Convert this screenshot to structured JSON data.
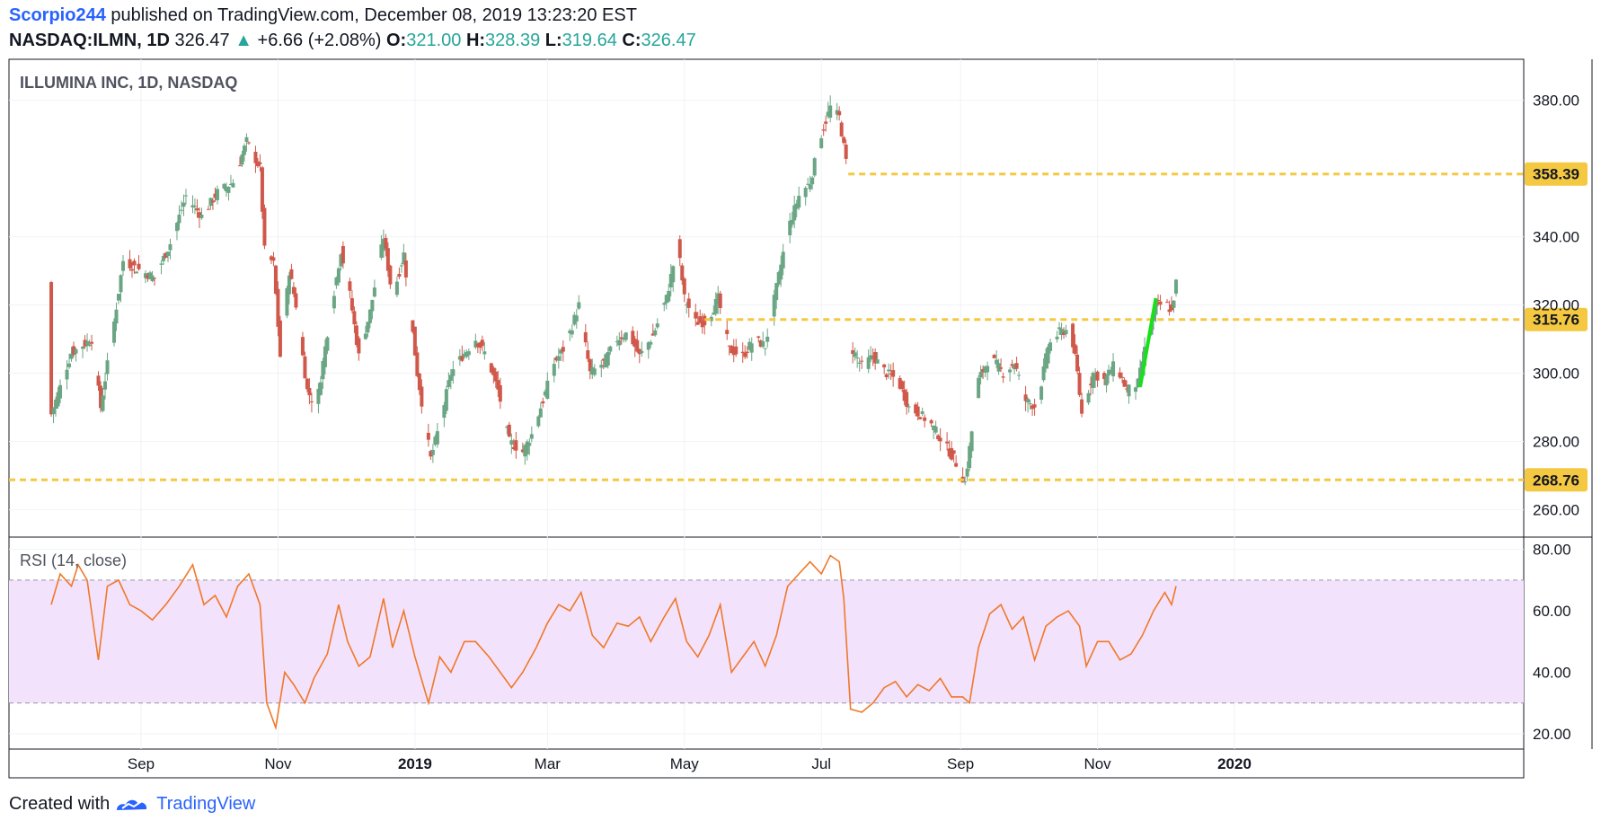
{
  "header": {
    "author": "Scorpio244",
    "published": " published on TradingView.com, December 08, 2019 13:23:20 EST",
    "symbol": "NASDAQ:ILMN, 1D",
    "last": "326.47",
    "change": "+6.66 (+2.08%)",
    "o_label": "O:",
    "o": "321.00",
    "h_label": "H:",
    "h": "328.39",
    "l_label": "L:",
    "l": "319.64",
    "c_label": "C:",
    "c": "326.47"
  },
  "footer": {
    "created_with": "Created with",
    "brand": "TradingView"
  },
  "colors": {
    "up": "#6aa584",
    "down": "#d0584a",
    "hline": "#f5c842",
    "trend": "#18e01a",
    "rsi": "#f0782a",
    "rsi_band": "#f3e2fb"
  },
  "chart_data": [
    {
      "type": "candlestick",
      "title": "ILLUMINA INC, 1D, NASDAQ",
      "x_ticks": [
        "Sep",
        "Nov",
        "2019",
        "Mar",
        "May",
        "Jul",
        "Sep",
        "Nov",
        "2020"
      ],
      "y_ticks": [
        "260.00",
        "280.00",
        "300.00",
        "320.00",
        "340.00",
        "380.00"
      ],
      "ylim": [
        252,
        392
      ],
      "grid": true,
      "horizontal_levels": [
        {
          "label": "358.39",
          "value": 358.39
        },
        {
          "label": "315.76",
          "value": 315.76
        },
        {
          "label": "268.76",
          "value": 268.76
        }
      ],
      "trend_line": {
        "from": {
          "x": "2019-11-20",
          "y": 296
        },
        "to": {
          "x": "2019-11-27",
          "y": 322
        }
      },
      "close_path": [
        {
          "x": "2018-07-23",
          "y": 288
        },
        {
          "x": "2018-08-01",
          "y": 306
        },
        {
          "x": "2018-08-10",
          "y": 310
        },
        {
          "x": "2018-08-14",
          "y": 290
        },
        {
          "x": "2018-08-20",
          "y": 315
        },
        {
          "x": "2018-08-24",
          "y": 333
        },
        {
          "x": "2018-09-01",
          "y": 330
        },
        {
          "x": "2018-09-07",
          "y": 328
        },
        {
          "x": "2018-09-14",
          "y": 338
        },
        {
          "x": "2018-09-21",
          "y": 352
        },
        {
          "x": "2018-09-28",
          "y": 346
        },
        {
          "x": "2018-10-05",
          "y": 353
        },
        {
          "x": "2018-10-12",
          "y": 356
        },
        {
          "x": "2018-10-18",
          "y": 368
        },
        {
          "x": "2018-10-24",
          "y": 360
        },
        {
          "x": "2018-10-26",
          "y": 336
        },
        {
          "x": "2018-10-30",
          "y": 332
        },
        {
          "x": "2018-11-02",
          "y": 305
        },
        {
          "x": "2018-11-06",
          "y": 330
        },
        {
          "x": "2018-11-09",
          "y": 320
        },
        {
          "x": "2018-11-14",
          "y": 295
        },
        {
          "x": "2018-11-18",
          "y": 290
        },
        {
          "x": "2018-11-23",
          "y": 312
        },
        {
          "x": "2018-11-29",
          "y": 336
        },
        {
          "x": "2018-12-03",
          "y": 323
        },
        {
          "x": "2018-12-07",
          "y": 305
        },
        {
          "x": "2018-12-12",
          "y": 318
        },
        {
          "x": "2018-12-18",
          "y": 340
        },
        {
          "x": "2018-12-22",
          "y": 322
        },
        {
          "x": "2018-12-27",
          "y": 335
        },
        {
          "x": "2019-01-02",
          "y": 300
        },
        {
          "x": "2019-01-08",
          "y": 275
        },
        {
          "x": "2019-01-12",
          "y": 285
        },
        {
          "x": "2019-01-17",
          "y": 300
        },
        {
          "x": "2019-01-22",
          "y": 305
        },
        {
          "x": "2019-01-28",
          "y": 310
        },
        {
          "x": "2019-02-02",
          "y": 305
        },
        {
          "x": "2019-02-07",
          "y": 295
        },
        {
          "x": "2019-02-12",
          "y": 280
        },
        {
          "x": "2019-02-18",
          "y": 277
        },
        {
          "x": "2019-02-22",
          "y": 282
        },
        {
          "x": "2019-02-27",
          "y": 292
        },
        {
          "x": "2019-03-04",
          "y": 303
        },
        {
          "x": "2019-03-09",
          "y": 308
        },
        {
          "x": "2019-03-15",
          "y": 320
        },
        {
          "x": "2019-03-20",
          "y": 300
        },
        {
          "x": "2019-03-26",
          "y": 303
        },
        {
          "x": "2019-04-01",
          "y": 310
        },
        {
          "x": "2019-04-06",
          "y": 312
        },
        {
          "x": "2019-04-11",
          "y": 305
        },
        {
          "x": "2019-04-17",
          "y": 311
        },
        {
          "x": "2019-04-23",
          "y": 322
        },
        {
          "x": "2019-04-28",
          "y": 338
        },
        {
          "x": "2019-05-01",
          "y": 322
        },
        {
          "x": "2019-05-06",
          "y": 315
        },
        {
          "x": "2019-05-11",
          "y": 315
        },
        {
          "x": "2019-05-16",
          "y": 322
        },
        {
          "x": "2019-05-21",
          "y": 307
        },
        {
          "x": "2019-05-27",
          "y": 305
        },
        {
          "x": "2019-06-01",
          "y": 310
        },
        {
          "x": "2019-06-06",
          "y": 308
        },
        {
          "x": "2019-06-11",
          "y": 325
        },
        {
          "x": "2019-06-16",
          "y": 342
        },
        {
          "x": "2019-06-21",
          "y": 352
        },
        {
          "x": "2019-06-26",
          "y": 356
        },
        {
          "x": "2019-07-01",
          "y": 370
        },
        {
          "x": "2019-07-05",
          "y": 378
        },
        {
          "x": "2019-07-09",
          "y": 375
        },
        {
          "x": "2019-07-12",
          "y": 362
        },
        {
          "x": "2019-07-14",
          "y": 308
        },
        {
          "x": "2019-07-19",
          "y": 302
        },
        {
          "x": "2019-07-24",
          "y": 305
        },
        {
          "x": "2019-07-30",
          "y": 300
        },
        {
          "x": "2019-08-04",
          "y": 298
        },
        {
          "x": "2019-08-09",
          "y": 290
        },
        {
          "x": "2019-08-14",
          "y": 288
        },
        {
          "x": "2019-08-19",
          "y": 285
        },
        {
          "x": "2019-08-24",
          "y": 280
        },
        {
          "x": "2019-08-29",
          "y": 275
        },
        {
          "x": "2019-09-03",
          "y": 268
        },
        {
          "x": "2019-09-05",
          "y": 278
        },
        {
          "x": "2019-09-09",
          "y": 298
        },
        {
          "x": "2019-09-14",
          "y": 305
        },
        {
          "x": "2019-09-20",
          "y": 300
        },
        {
          "x": "2019-09-25",
          "y": 303
        },
        {
          "x": "2019-09-30",
          "y": 292
        },
        {
          "x": "2019-10-05",
          "y": 290
        },
        {
          "x": "2019-10-10",
          "y": 308
        },
        {
          "x": "2019-10-15",
          "y": 312
        },
        {
          "x": "2019-10-20",
          "y": 313
        },
        {
          "x": "2019-10-23",
          "y": 300
        },
        {
          "x": "2019-10-25",
          "y": 288
        },
        {
          "x": "2019-10-30",
          "y": 300
        },
        {
          "x": "2019-11-04",
          "y": 298
        },
        {
          "x": "2019-11-09",
          "y": 303
        },
        {
          "x": "2019-11-14",
          "y": 295
        },
        {
          "x": "2019-11-19",
          "y": 297
        },
        {
          "x": "2019-11-23",
          "y": 310
        },
        {
          "x": "2019-11-27",
          "y": 320
        },
        {
          "x": "2019-12-02",
          "y": 320
        },
        {
          "x": "2019-12-04",
          "y": 318
        },
        {
          "x": "2019-12-06",
          "y": 326.47
        }
      ]
    },
    {
      "type": "line",
      "title": "RSI (14, close)",
      "y_ticks": [
        "20.00",
        "40.00",
        "60.00",
        "80.00"
      ],
      "ylim": [
        15,
        84
      ],
      "bands": [
        30,
        70
      ],
      "grid": true,
      "series": [
        {
          "values": [
            {
              "x": "2018-07-23",
              "y": 62
            },
            {
              "x": "2018-07-27",
              "y": 72
            },
            {
              "x": "2018-08-01",
              "y": 68
            },
            {
              "x": "2018-08-04",
              "y": 75
            },
            {
              "x": "2018-08-08",
              "y": 70
            },
            {
              "x": "2018-08-13",
              "y": 44
            },
            {
              "x": "2018-08-17",
              "y": 68
            },
            {
              "x": "2018-08-22",
              "y": 70
            },
            {
              "x": "2018-08-27",
              "y": 62
            },
            {
              "x": "2018-09-01",
              "y": 60
            },
            {
              "x": "2018-09-06",
              "y": 57
            },
            {
              "x": "2018-09-12",
              "y": 62
            },
            {
              "x": "2018-09-18",
              "y": 68
            },
            {
              "x": "2018-09-24",
              "y": 75
            },
            {
              "x": "2018-09-29",
              "y": 62
            },
            {
              "x": "2018-10-04",
              "y": 65
            },
            {
              "x": "2018-10-09",
              "y": 58
            },
            {
              "x": "2018-10-14",
              "y": 68
            },
            {
              "x": "2018-10-19",
              "y": 72
            },
            {
              "x": "2018-10-24",
              "y": 62
            },
            {
              "x": "2018-10-27",
              "y": 30
            },
            {
              "x": "2018-10-31",
              "y": 22
            },
            {
              "x": "2018-11-04",
              "y": 40
            },
            {
              "x": "2018-11-08",
              "y": 36
            },
            {
              "x": "2018-11-13",
              "y": 30
            },
            {
              "x": "2018-11-17",
              "y": 38
            },
            {
              "x": "2018-11-23",
              "y": 46
            },
            {
              "x": "2018-11-28",
              "y": 62
            },
            {
              "x": "2018-12-02",
              "y": 50
            },
            {
              "x": "2018-12-07",
              "y": 42
            },
            {
              "x": "2018-12-12",
              "y": 45
            },
            {
              "x": "2018-12-18",
              "y": 64
            },
            {
              "x": "2018-12-22",
              "y": 48
            },
            {
              "x": "2018-12-27",
              "y": 60
            },
            {
              "x": "2019-01-01",
              "y": 45
            },
            {
              "x": "2019-01-07",
              "y": 30
            },
            {
              "x": "2019-01-12",
              "y": 45
            },
            {
              "x": "2019-01-17",
              "y": 40
            },
            {
              "x": "2019-01-23",
              "y": 50
            },
            {
              "x": "2019-01-28",
              "y": 50
            },
            {
              "x": "2019-02-03",
              "y": 45
            },
            {
              "x": "2019-02-08",
              "y": 40
            },
            {
              "x": "2019-02-13",
              "y": 35
            },
            {
              "x": "2019-02-18",
              "y": 40
            },
            {
              "x": "2019-02-24",
              "y": 48
            },
            {
              "x": "2019-03-01",
              "y": 56
            },
            {
              "x": "2019-03-06",
              "y": 62
            },
            {
              "x": "2019-03-11",
              "y": 60
            },
            {
              "x": "2019-03-16",
              "y": 66
            },
            {
              "x": "2019-03-21",
              "y": 52
            },
            {
              "x": "2019-03-26",
              "y": 48
            },
            {
              "x": "2019-04-01",
              "y": 56
            },
            {
              "x": "2019-04-06",
              "y": 55
            },
            {
              "x": "2019-04-11",
              "y": 58
            },
            {
              "x": "2019-04-16",
              "y": 50
            },
            {
              "x": "2019-04-22",
              "y": 58
            },
            {
              "x": "2019-04-27",
              "y": 64
            },
            {
              "x": "2019-05-02",
              "y": 50
            },
            {
              "x": "2019-05-07",
              "y": 45
            },
            {
              "x": "2019-05-12",
              "y": 52
            },
            {
              "x": "2019-05-17",
              "y": 62
            },
            {
              "x": "2019-05-22",
              "y": 40
            },
            {
              "x": "2019-05-27",
              "y": 45
            },
            {
              "x": "2019-06-01",
              "y": 50
            },
            {
              "x": "2019-06-06",
              "y": 42
            },
            {
              "x": "2019-06-11",
              "y": 52
            },
            {
              "x": "2019-06-16",
              "y": 68
            },
            {
              "x": "2019-06-21",
              "y": 72
            },
            {
              "x": "2019-06-26",
              "y": 76
            },
            {
              "x": "2019-07-01",
              "y": 72
            },
            {
              "x": "2019-07-05",
              "y": 78
            },
            {
              "x": "2019-07-09",
              "y": 76
            },
            {
              "x": "2019-07-11",
              "y": 64
            },
            {
              "x": "2019-07-14",
              "y": 28
            },
            {
              "x": "2019-07-19",
              "y": 27
            },
            {
              "x": "2019-07-24",
              "y": 30
            },
            {
              "x": "2019-07-29",
              "y": 35
            },
            {
              "x": "2019-08-03",
              "y": 37
            },
            {
              "x": "2019-08-08",
              "y": 32
            },
            {
              "x": "2019-08-13",
              "y": 36
            },
            {
              "x": "2019-08-18",
              "y": 34
            },
            {
              "x": "2019-08-23",
              "y": 38
            },
            {
              "x": "2019-08-28",
              "y": 32
            },
            {
              "x": "2019-09-02",
              "y": 32
            },
            {
              "x": "2019-09-05",
              "y": 30
            },
            {
              "x": "2019-09-09",
              "y": 48
            },
            {
              "x": "2019-09-14",
              "y": 59
            },
            {
              "x": "2019-09-19",
              "y": 62
            },
            {
              "x": "2019-09-24",
              "y": 54
            },
            {
              "x": "2019-09-29",
              "y": 58
            },
            {
              "x": "2019-10-04",
              "y": 44
            },
            {
              "x": "2019-10-09",
              "y": 55
            },
            {
              "x": "2019-10-14",
              "y": 58
            },
            {
              "x": "2019-10-19",
              "y": 60
            },
            {
              "x": "2019-10-24",
              "y": 55
            },
            {
              "x": "2019-10-27",
              "y": 42
            },
            {
              "x": "2019-11-01",
              "y": 50
            },
            {
              "x": "2019-11-06",
              "y": 50
            },
            {
              "x": "2019-11-11",
              "y": 44
            },
            {
              "x": "2019-11-16",
              "y": 46
            },
            {
              "x": "2019-11-21",
              "y": 52
            },
            {
              "x": "2019-11-26",
              "y": 60
            },
            {
              "x": "2019-12-01",
              "y": 66
            },
            {
              "x": "2019-12-04",
              "y": 62
            },
            {
              "x": "2019-12-06",
              "y": 68
            }
          ]
        }
      ]
    }
  ]
}
